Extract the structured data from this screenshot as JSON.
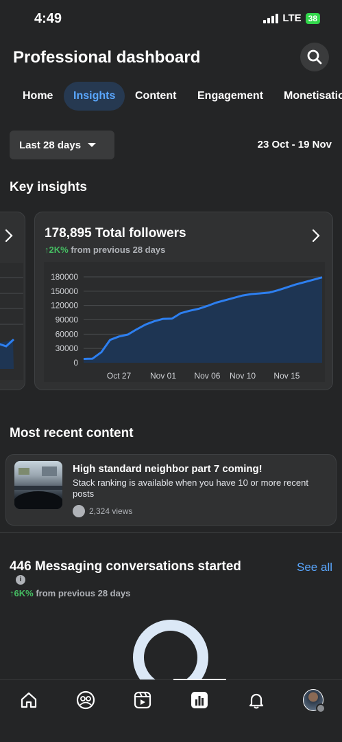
{
  "status": {
    "time": "4:49",
    "network": "LTE",
    "battery": "38"
  },
  "header": {
    "title": "Professional dashboard",
    "search_icon": "search-icon"
  },
  "tabs": [
    {
      "label": "Home"
    },
    {
      "label": "Insights",
      "active": true
    },
    {
      "label": "Content"
    },
    {
      "label": "Engagement"
    },
    {
      "label": "Monetisation"
    }
  ],
  "filter": {
    "range_label": "Last 28 days",
    "date_range": "23 Oct - 19 Nov"
  },
  "key_insights": {
    "title": "Key insights",
    "followers_card": {
      "title": "178,895 Total followers",
      "change": "2K%",
      "change_suffix": "from previous 28 days"
    }
  },
  "chart_data": {
    "type": "area",
    "x_ticks": [
      "Oct 27",
      "Nov 01",
      "Nov 06",
      "Nov 10",
      "Nov 15"
    ],
    "y_ticks": [
      "180000",
      "150000",
      "120000",
      "90000",
      "60000",
      "30000",
      "0"
    ],
    "ylim": [
      0,
      180000
    ],
    "x": [
      "Oct 23",
      "Oct 24",
      "Oct 25",
      "Oct 26",
      "Oct 27",
      "Oct 28",
      "Oct 29",
      "Oct 30",
      "Oct 31",
      "Nov 01",
      "Nov 02",
      "Nov 03",
      "Nov 04",
      "Nov 05",
      "Nov 06",
      "Nov 07",
      "Nov 08",
      "Nov 09",
      "Nov 10",
      "Nov 11",
      "Nov 12",
      "Nov 13",
      "Nov 14",
      "Nov 15",
      "Nov 16",
      "Nov 17",
      "Nov 18",
      "Nov 19"
    ],
    "values": [
      8000,
      8500,
      22000,
      48000,
      55000,
      59000,
      70000,
      80000,
      87000,
      92000,
      92500,
      104000,
      109000,
      113000,
      119000,
      126000,
      131000,
      136000,
      141000,
      144000,
      145500,
      147000,
      152000,
      158000,
      164000,
      169000,
      174000,
      179000
    ],
    "grid": true,
    "line_color": "#2d7ff0",
    "fill_color": "#1e3553"
  },
  "recent_content": {
    "title": "Most recent content",
    "post": {
      "title": "High standard neighbor part 7 coming!",
      "description": "Stack ranking is available when you have 10 or more recent posts",
      "views": "2,324 views"
    }
  },
  "messaging": {
    "title": "446 Messaging conversations started",
    "see_all": "See all",
    "change": "6K%",
    "change_suffix": "from previous 28 days"
  },
  "nav": {
    "items": [
      "home-icon",
      "groups-icon",
      "reels-icon",
      "dashboard-icon",
      "notifications-icon",
      "profile-avatar"
    ],
    "active": "dashboard-icon"
  },
  "colors": {
    "accent": "#5aa7ff",
    "positive": "#45bd62",
    "background": "#242526"
  }
}
